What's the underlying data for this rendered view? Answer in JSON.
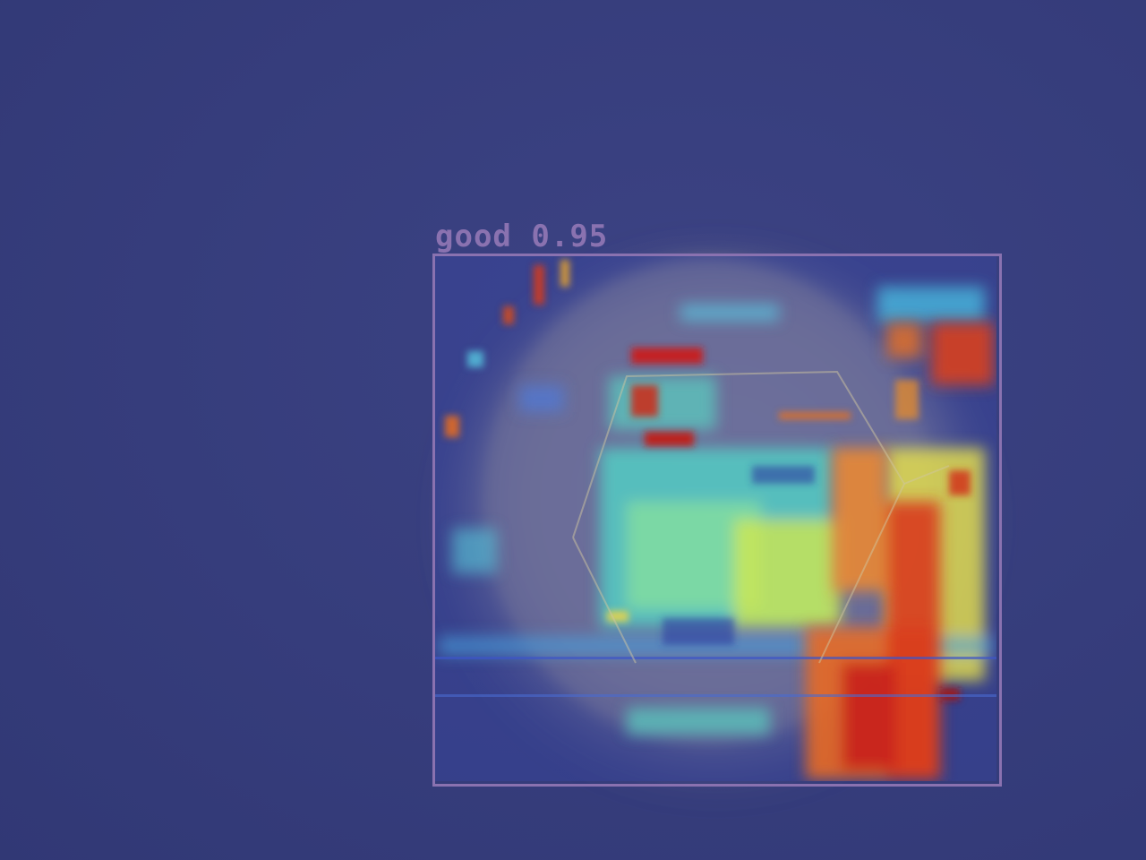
{
  "detection": {
    "class_label": "good",
    "confidence": "0.95"
  },
  "colors": {
    "background": "#363d7c",
    "box": "#8a72b0",
    "heat_low": "#2b3ca8",
    "heat_mid": "#5ee0c8",
    "heat_high": "#f0e040",
    "heat_peak": "#c8201a"
  }
}
